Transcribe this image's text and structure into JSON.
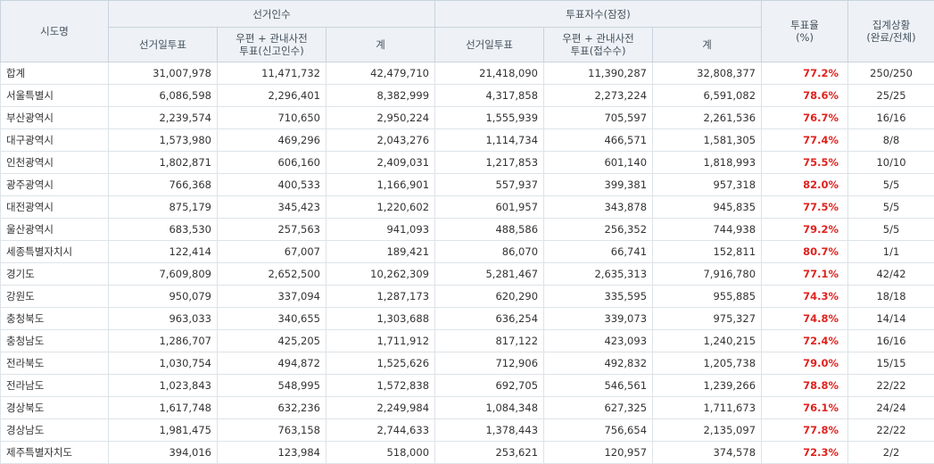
{
  "headers": {
    "region": "시도명",
    "electorate_group": "선거인수",
    "voters_group": "투표자수(잠정)",
    "turnout_line1": "투표율",
    "turnout_line2": "(%)",
    "status_line1": "집계상황",
    "status_line2": "(완료/전체)",
    "e_election_day": "선거일투표",
    "e_postal_line1": "우편 + 관내사전",
    "e_postal_line2": "투표(신고인수)",
    "e_total": "계",
    "v_election_day": "선거일투표",
    "v_postal_line1": "우편 + 관내사전",
    "v_postal_line2": "투표(접수수)",
    "v_total": "계"
  },
  "rows": [
    {
      "name": "합계",
      "e_day": "31,007,978",
      "e_postal": "11,471,732",
      "e_total": "42,479,710",
      "v_day": "21,418,090",
      "v_postal": "11,390,287",
      "v_total": "32,808,377",
      "rate": "77.2%",
      "status": "250/250"
    },
    {
      "name": "서울특별시",
      "e_day": "6,086,598",
      "e_postal": "2,296,401",
      "e_total": "8,382,999",
      "v_day": "4,317,858",
      "v_postal": "2,273,224",
      "v_total": "6,591,082",
      "rate": "78.6%",
      "status": "25/25"
    },
    {
      "name": "부산광역시",
      "e_day": "2,239,574",
      "e_postal": "710,650",
      "e_total": "2,950,224",
      "v_day": "1,555,939",
      "v_postal": "705,597",
      "v_total": "2,261,536",
      "rate": "76.7%",
      "status": "16/16"
    },
    {
      "name": "대구광역시",
      "e_day": "1,573,980",
      "e_postal": "469,296",
      "e_total": "2,043,276",
      "v_day": "1,114,734",
      "v_postal": "466,571",
      "v_total": "1,581,305",
      "rate": "77.4%",
      "status": "8/8"
    },
    {
      "name": "인천광역시",
      "e_day": "1,802,871",
      "e_postal": "606,160",
      "e_total": "2,409,031",
      "v_day": "1,217,853",
      "v_postal": "601,140",
      "v_total": "1,818,993",
      "rate": "75.5%",
      "status": "10/10"
    },
    {
      "name": "광주광역시",
      "e_day": "766,368",
      "e_postal": "400,533",
      "e_total": "1,166,901",
      "v_day": "557,937",
      "v_postal": "399,381",
      "v_total": "957,318",
      "rate": "82.0%",
      "status": "5/5"
    },
    {
      "name": "대전광역시",
      "e_day": "875,179",
      "e_postal": "345,423",
      "e_total": "1,220,602",
      "v_day": "601,957",
      "v_postal": "343,878",
      "v_total": "945,835",
      "rate": "77.5%",
      "status": "5/5"
    },
    {
      "name": "울산광역시",
      "e_day": "683,530",
      "e_postal": "257,563",
      "e_total": "941,093",
      "v_day": "488,586",
      "v_postal": "256,352",
      "v_total": "744,938",
      "rate": "79.2%",
      "status": "5/5"
    },
    {
      "name": "세종특별자치시",
      "e_day": "122,414",
      "e_postal": "67,007",
      "e_total": "189,421",
      "v_day": "86,070",
      "v_postal": "66,741",
      "v_total": "152,811",
      "rate": "80.7%",
      "status": "1/1"
    },
    {
      "name": "경기도",
      "e_day": "7,609,809",
      "e_postal": "2,652,500",
      "e_total": "10,262,309",
      "v_day": "5,281,467",
      "v_postal": "2,635,313",
      "v_total": "7,916,780",
      "rate": "77.1%",
      "status": "42/42"
    },
    {
      "name": "강원도",
      "e_day": "950,079",
      "e_postal": "337,094",
      "e_total": "1,287,173",
      "v_day": "620,290",
      "v_postal": "335,595",
      "v_total": "955,885",
      "rate": "74.3%",
      "status": "18/18"
    },
    {
      "name": "충청북도",
      "e_day": "963,033",
      "e_postal": "340,655",
      "e_total": "1,303,688",
      "v_day": "636,254",
      "v_postal": "339,073",
      "v_total": "975,327",
      "rate": "74.8%",
      "status": "14/14"
    },
    {
      "name": "충청남도",
      "e_day": "1,286,707",
      "e_postal": "425,205",
      "e_total": "1,711,912",
      "v_day": "817,122",
      "v_postal": "423,093",
      "v_total": "1,240,215",
      "rate": "72.4%",
      "status": "16/16"
    },
    {
      "name": "전라북도",
      "e_day": "1,030,754",
      "e_postal": "494,872",
      "e_total": "1,525,626",
      "v_day": "712,906",
      "v_postal": "492,832",
      "v_total": "1,205,738",
      "rate": "79.0%",
      "status": "15/15"
    },
    {
      "name": "전라남도",
      "e_day": "1,023,843",
      "e_postal": "548,995",
      "e_total": "1,572,838",
      "v_day": "692,705",
      "v_postal": "546,561",
      "v_total": "1,239,266",
      "rate": "78.8%",
      "status": "22/22"
    },
    {
      "name": "경상북도",
      "e_day": "1,617,748",
      "e_postal": "632,236",
      "e_total": "2,249,984",
      "v_day": "1,084,348",
      "v_postal": "627,325",
      "v_total": "1,711,673",
      "rate": "76.1%",
      "status": "24/24"
    },
    {
      "name": "경상남도",
      "e_day": "1,981,475",
      "e_postal": "763,158",
      "e_total": "2,744,633",
      "v_day": "1,378,443",
      "v_postal": "756,654",
      "v_total": "2,135,097",
      "rate": "77.8%",
      "status": "22/22"
    },
    {
      "name": "제주특별자치도",
      "e_day": "394,016",
      "e_postal": "123,984",
      "e_total": "518,000",
      "v_day": "253,621",
      "v_postal": "120,957",
      "v_total": "374,578",
      "rate": "72.3%",
      "status": "2/2"
    }
  ],
  "colors": {
    "rate_text": "#e0231f",
    "header_bg": "#eef2f6",
    "border": "#c9d3dc"
  }
}
